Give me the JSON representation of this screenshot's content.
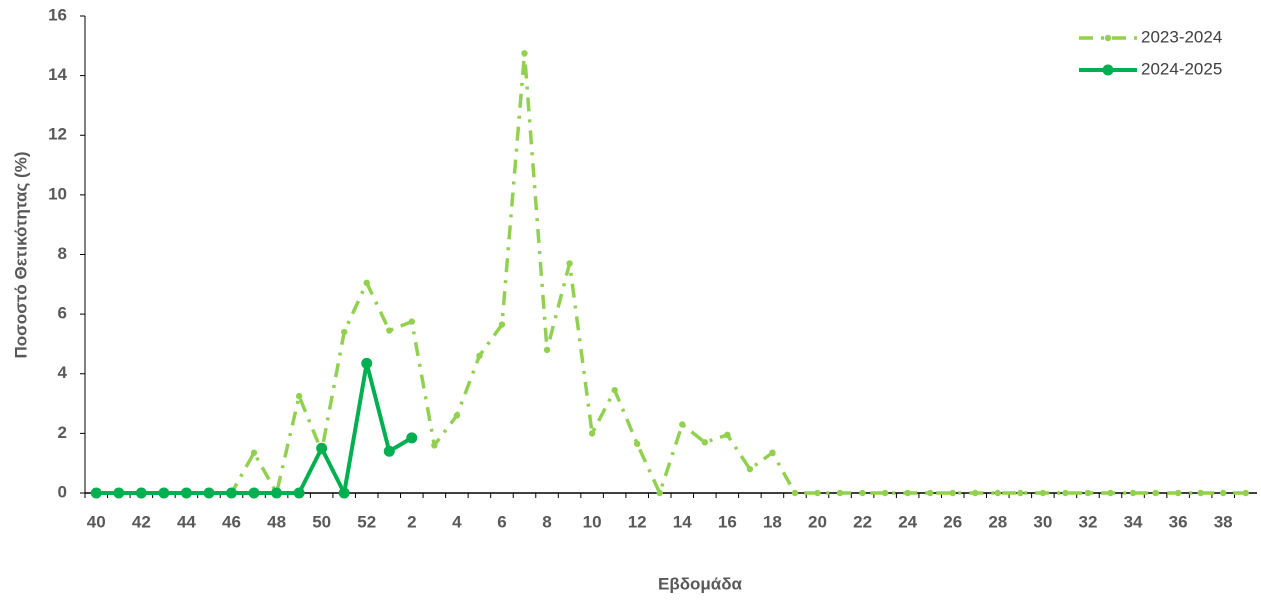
{
  "chart_data": {
    "type": "line",
    "x_label": "Εβδομάδα",
    "y_label": "Ποσοστό Θετικότητας (%)",
    "categories": [
      40,
      null,
      42,
      null,
      44,
      null,
      46,
      null,
      48,
      null,
      50,
      null,
      52,
      null,
      2,
      null,
      4,
      null,
      6,
      null,
      8,
      null,
      10,
      null,
      12,
      null,
      14,
      null,
      16,
      null,
      18,
      null,
      20,
      null,
      22,
      null,
      24,
      null,
      26,
      null,
      28,
      null,
      30,
      null,
      32,
      null,
      34,
      null,
      36,
      null,
      38,
      null
    ],
    "series": [
      {
        "name": "2023-2024",
        "color": "#92d050",
        "style": "dash-dot",
        "values": [
          0,
          0,
          0,
          0,
          0,
          0,
          0,
          1.35,
          0,
          3.25,
          1.4,
          5.4,
          7.05,
          5.45,
          5.75,
          1.6,
          2.6,
          4.6,
          5.65,
          14.75,
          4.8,
          7.7,
          2.0,
          3.45,
          1.65,
          0,
          2.3,
          1.7,
          1.95,
          0.8,
          1.35,
          0,
          0,
          0,
          0,
          0,
          0,
          0,
          0,
          0,
          0,
          0,
          0,
          0,
          0,
          0,
          0,
          0,
          0,
          0,
          0,
          0
        ]
      },
      {
        "name": "2024-2025",
        "color": "#00b050",
        "style": "solid",
        "values": [
          0,
          0,
          0,
          0,
          0,
          0,
          0,
          0,
          0,
          0,
          1.5,
          0,
          4.35,
          1.4,
          1.85,
          null,
          null,
          null,
          null,
          null,
          null,
          null,
          null,
          null,
          null,
          null,
          null,
          null,
          null,
          null,
          null,
          null,
          null,
          null,
          null,
          null,
          null,
          null,
          null,
          null,
          null,
          null,
          null,
          null,
          null,
          null,
          null,
          null,
          null,
          null,
          null,
          null
        ]
      }
    ],
    "ylim": [
      0,
      16
    ],
    "yticks": [
      0,
      2,
      4,
      6,
      8,
      10,
      12,
      14,
      16
    ],
    "grid": false,
    "legend": "upper right"
  }
}
